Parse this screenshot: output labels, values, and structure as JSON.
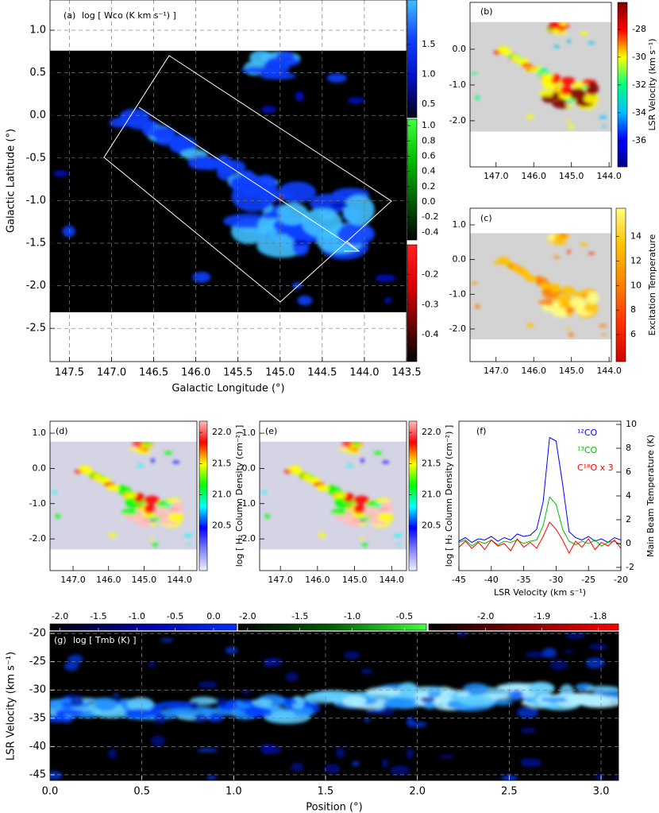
{
  "chart_data": [
    {
      "type": "map",
      "label": "(a)",
      "annotation": "log [ Wco (K km s⁻¹) ]",
      "xlabel": "Galactic Longitude (°)",
      "ylabel": "Galactic Latitude (°)",
      "xlim": [
        147.73,
        143.5
      ],
      "ylim": [
        -2.89,
        1.355
      ],
      "coverage": [
        -2.31,
        0.76
      ],
      "map_bg": "#000000",
      "grid": true,
      "xticks": [
        147.5,
        {
          "value": 147,
          "label": "147.0"
        },
        146.5,
        {
          "value": 146,
          "label": "146.0"
        },
        145.5,
        {
          "value": 145,
          "label": "145.0"
        },
        144.5,
        {
          "value": 144,
          "label": "144.0"
        },
        143.5
      ],
      "yticks": [
        {
          "value": 1,
          "label": "1.0"
        },
        0.5,
        {
          "value": 0,
          "label": "0.0"
        },
        -0.5,
        {
          "value": -1,
          "label": "-1.0"
        },
        -1.5,
        {
          "value": -2,
          "label": "-2.0"
        },
        -2.5
      ],
      "colorbars": [
        {
          "lim": [
            0.27,
            2.25
          ],
          "ticks": [
            1.5,
            {
              "value": 1,
              "label": "1.0"
            },
            0.5
          ],
          "colors": [
            "#000010",
            "#0010c0",
            "#1040ff",
            "#40c0ff"
          ]
        },
        {
          "lim": [
            -0.5,
            1.084
          ],
          "ticks": [
            {
              "value": 1,
              "label": "1.0"
            },
            0.8,
            0.6,
            0.4,
            0.2,
            {
              "value": 0,
              "label": "0.0"
            },
            -0.2,
            -0.4
          ],
          "colors": [
            "#000000",
            "#006000",
            "#00c000",
            "#40ff40"
          ]
        },
        {
          "lim": [
            -0.49,
            -0.1
          ],
          "ticks": [
            -0.2,
            -0.3,
            -0.4
          ],
          "colors": [
            "#000000",
            "#700000",
            "#e00000",
            "#ff2020"
          ]
        }
      ]
    },
    {
      "type": "map",
      "label": "(b)",
      "xlim": [
        147.69,
        143.94
      ],
      "ylim": [
        -3.29,
        1.31
      ],
      "coverage": [
        -2.3,
        0.76
      ],
      "map_bg": "#d3d3d3",
      "xticks": [
        {
          "value": 147,
          "label": "147.0"
        },
        {
          "value": 146,
          "label": "146.0"
        },
        {
          "value": 145,
          "label": "145.0"
        },
        {
          "value": 144,
          "label": "144.0"
        }
      ],
      "yticks": [
        {
          "value": 0,
          "label": "0.0"
        },
        {
          "value": -1,
          "label": "-1.0"
        },
        {
          "value": -2,
          "label": "-2.0"
        }
      ],
      "colorbars": [
        {
          "lim": [
            -37.9,
            -26.06
          ],
          "ticks": [
            -28,
            -30,
            -32,
            -34,
            -36
          ],
          "label": "LSR Velocity (km s⁻¹)",
          "colors": [
            "#00007f",
            "#0000ff",
            "#00bfff",
            "#00ff80",
            "#ffff00",
            "#ff0000",
            "#7f0000"
          ]
        }
      ]
    },
    {
      "type": "map",
      "label": "(c)",
      "xlim": [
        147.69,
        143.94
      ],
      "ylim": [
        -2.94,
        1.48
      ],
      "coverage": [
        -2.3,
        0.76
      ],
      "map_bg": "#d3d3d3",
      "xticks": [
        {
          "value": 147,
          "label": "147.0"
        },
        {
          "value": 146,
          "label": "146.0"
        },
        {
          "value": 145,
          "label": "145.0"
        },
        {
          "value": 144,
          "label": "144.0"
        }
      ],
      "yticks": [
        {
          "value": 1,
          "label": "1.0"
        },
        {
          "value": 0,
          "label": "0.0"
        },
        {
          "value": -1,
          "label": "-1.0"
        },
        {
          "value": -2,
          "label": "-2.0"
        }
      ],
      "colorbars": [
        {
          "lim": [
            3.8,
            16.3
          ],
          "ticks": [
            6,
            8,
            10,
            12,
            14
          ],
          "label": "Excitation Temperature",
          "colors": [
            "#d00000",
            "#ff3000",
            "#ff8000",
            "#ffc000",
            "#ffff80"
          ]
        }
      ]
    },
    {
      "type": "map",
      "label": "(d)",
      "xlim": [
        147.65,
        143.51
      ],
      "ylim": [
        -2.9,
        1.34
      ],
      "coverage": [
        -2.3,
        0.76
      ],
      "map_bg": "#d4d4e4",
      "xticks": [
        {
          "value": 147,
          "label": "147.0"
        },
        {
          "value": 146,
          "label": "146.0"
        },
        {
          "value": 145,
          "label": "145.0"
        },
        {
          "value": 144,
          "label": "144.0"
        }
      ],
      "yticks": [
        {
          "value": 1,
          "label": "1.0"
        },
        {
          "value": 0,
          "label": "0.0"
        },
        {
          "value": -1,
          "label": "-1.0"
        },
        {
          "value": -2,
          "label": "-2.0"
        }
      ],
      "colorbars": [
        {
          "lim": [
            19.78,
            22.18
          ],
          "ticks": [
            20.5,
            {
              "value": 21,
              "label": "21.0"
            },
            21.5,
            {
              "value": 22,
              "label": "22.0"
            }
          ],
          "label": "log [ H₂ Column Density (cm⁻²) ]",
          "colors": [
            "#f0f0ff",
            "#8080ff",
            "#0000ff",
            "#00ffff",
            "#00ff00",
            "#ffff00",
            "#ff0000",
            "#ffc0c0"
          ]
        }
      ]
    },
    {
      "type": "map",
      "label": "(e)",
      "xlim": [
        147.56,
        143.6
      ],
      "ylim": [
        -2.9,
        1.34
      ],
      "coverage": [
        -2.3,
        0.76
      ],
      "map_bg": "#d4d4e4",
      "xticks": [
        {
          "value": 147,
          "label": "147.0"
        },
        {
          "value": 146,
          "label": "146.0"
        },
        {
          "value": 145,
          "label": "145.0"
        },
        {
          "value": 144,
          "label": "144.0"
        }
      ],
      "yticks": [
        {
          "value": 1,
          "label": "1.0"
        },
        {
          "value": 0,
          "label": "0.0"
        },
        {
          "value": -1,
          "label": "-1.0"
        },
        {
          "value": -2,
          "label": "-2.0"
        }
      ],
      "colorbars": [
        {
          "lim": [
            19.78,
            22.18
          ],
          "ticks": [
            20.5,
            {
              "value": 21,
              "label": "21.0"
            },
            21.5,
            {
              "value": 22,
              "label": "22.0"
            }
          ],
          "label": "log [ H₂ Column Density (cm⁻²) ]",
          "colors": [
            "#f0f0ff",
            "#8080ff",
            "#0000ff",
            "#00ffff",
            "#00ff00",
            "#ffff00",
            "#ff0000",
            "#ffc0c0"
          ]
        }
      ]
    },
    {
      "type": "line",
      "label": "(f)",
      "xlabel": "LSR Velocity (km s⁻¹)",
      "ylabel": "Main Beam Temperature (K)",
      "xlim": [
        -45,
        -20
      ],
      "ylim": [
        -2.27,
        10.27
      ],
      "y_side": "right",
      "xticks": [
        -45,
        -40,
        -35,
        -30,
        -25,
        -20
      ],
      "yticks": [
        -2,
        0,
        2,
        4,
        6,
        8,
        10
      ],
      "x": [
        -45,
        -44,
        -43,
        -42,
        -41,
        -40,
        -39,
        -38,
        -37,
        -36,
        -35,
        -34,
        -33,
        -32,
        -31,
        -30,
        -29,
        -28,
        -27,
        -26,
        -25,
        -24,
        -23,
        -22,
        -21,
        -20
      ],
      "series": [
        {
          "name": "¹²CO",
          "color": "#0000ff",
          "values": [
            0.2,
            0.5,
            0.1,
            0.4,
            0.3,
            0.6,
            0.2,
            0.5,
            0.3,
            0.8,
            0.6,
            0.7,
            1.2,
            3.5,
            8.9,
            8.6,
            5.0,
            1.0,
            0.5,
            0.3,
            0.6,
            0.2,
            0.4,
            0.1,
            0.5,
            0.3
          ]
        },
        {
          "name": "¹³CO",
          "color": "#00c000",
          "values": [
            0.1,
            0.3,
            -0.2,
            0.2,
            0.0,
            0.3,
            -0.1,
            0.2,
            0.1,
            0.3,
            0.0,
            0.2,
            0.3,
            1.5,
            3.9,
            3.3,
            1.2,
            0.2,
            -0.1,
            0.2,
            0.0,
            0.3,
            -0.2,
            0.1,
            0.2,
            -0.1
          ]
        },
        {
          "name": "C¹⁸O x 3",
          "color": "#ff0000",
          "values": [
            -0.3,
            0.2,
            -0.4,
            0.1,
            -0.5,
            0.3,
            -0.2,
            0.0,
            -0.6,
            0.4,
            -0.3,
            0.1,
            -0.4,
            0.6,
            1.8,
            1.2,
            0.3,
            -0.8,
            0.2,
            -0.3,
            0.4,
            -0.5,
            0.1,
            -0.2,
            0.3,
            -0.4
          ]
        }
      ]
    },
    {
      "type": "pv",
      "label": "(g)",
      "annotation": "log [ Tmb (K) ]",
      "xlabel": "Position (°)",
      "ylabel": "LSR Velocity (km s⁻¹)",
      "xlim": [
        0,
        3.095
      ],
      "ylim": [
        -46,
        -19.7
      ],
      "grid": true,
      "xticks": [
        {
          "value": 0,
          "label": "0.0"
        },
        0.5,
        {
          "value": 1,
          "label": "1.0"
        },
        1.5,
        {
          "value": 2,
          "label": "2.0"
        },
        2.5,
        {
          "value": 3,
          "label": "3.0"
        }
      ],
      "yticks": [
        -20,
        -25,
        -30,
        -35,
        -40,
        -45
      ],
      "colorbars": [
        {
          "lim": [
            -2.13,
            0.3
          ],
          "ticks": [
            {
              "value": -2,
              "label": "-2.0"
            },
            -1.5,
            {
              "value": -1,
              "label": "-1.0"
            },
            -0.5,
            {
              "value": 0,
              "label": "0.0"
            }
          ],
          "colors": [
            "#000000",
            "#0000a0",
            "#0030ff"
          ]
        },
        {
          "lim": [
            -2.09,
            -0.29
          ],
          "ticks": [
            {
              "value": -2,
              "label": "-2.0"
            },
            -1.5,
            {
              "value": -1,
              "label": "-1.0"
            },
            -0.5
          ],
          "colors": [
            "#000000",
            "#006000",
            "#40ff40"
          ]
        },
        {
          "lim": [
            -2.101,
            -1.764
          ],
          "ticks": [
            {
              "value": -2,
              "label": "-2.0"
            },
            -1.9,
            -1.8
          ],
          "colors": [
            "#000000",
            "#800000",
            "#ff0000"
          ]
        }
      ]
    }
  ]
}
